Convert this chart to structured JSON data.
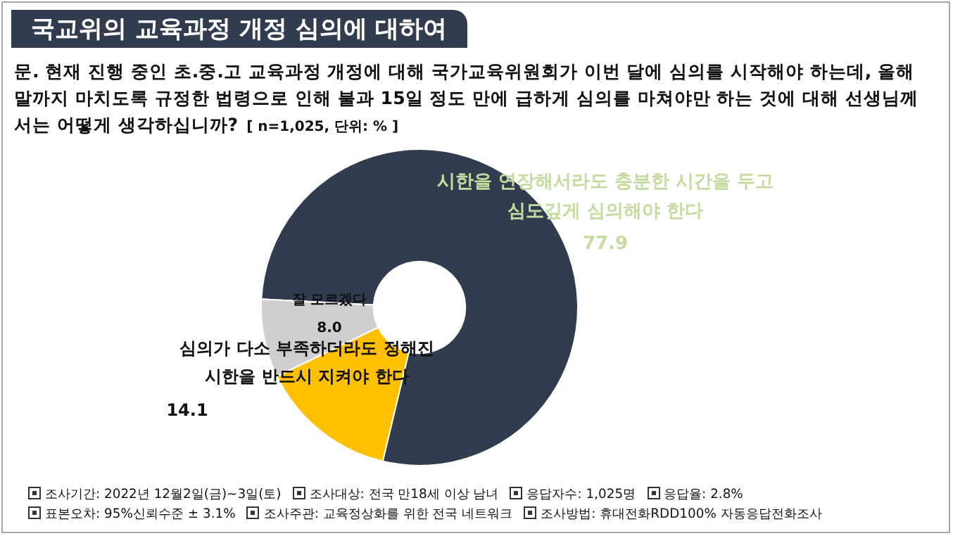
{
  "chart_data": {
    "type": "donut",
    "title": "국교위의 교육과정 개정 심의에 대하여",
    "subtitle": "문. 현재 진행 중인 초.중.고 교육과정 개정에 대해 국가교육위원회가 이번 달에 심의를 시작해야 하는데, 올해 말까지 마치도록 규정한 법령으로 인해 불과 15일 정도 만에 급하게 심의를 마쳐야만 하는 것에 대해 선생님께서는 어떻게 생각하십니까?",
    "categories": [
      "시한을 연장해서라도 충분한 시간을 두고 심도깊게 심의해야 한다",
      "심의가 다소 부족하더라도 정해진 시한을 반드시 지켜야 한다",
      "잘 모르겠다"
    ],
    "values": [
      77.9,
      14.1,
      8.0
    ],
    "colors": [
      "#323c4f",
      "#ffc000",
      "#d0cece"
    ],
    "value_labels": [
      "77.9",
      "14.1",
      "8.0"
    ],
    "legend": false,
    "annotations": [
      "[ n=1,025, 단위: % ]",
      "조사기간: 2022년 12월2일(금)~3일(토)",
      "조사대상: 전국 만18세 이상 남녀",
      "응답자수: 1,025명",
      "응답율: 2.8%",
      "표본오차: 95%신뢰수준 ± 3.1%",
      "조사주관: 교육정상화를 위한 전국 네트워크",
      "조사방법: 휴대전화RDD100% 자동응답전화조사"
    ]
  }
}
